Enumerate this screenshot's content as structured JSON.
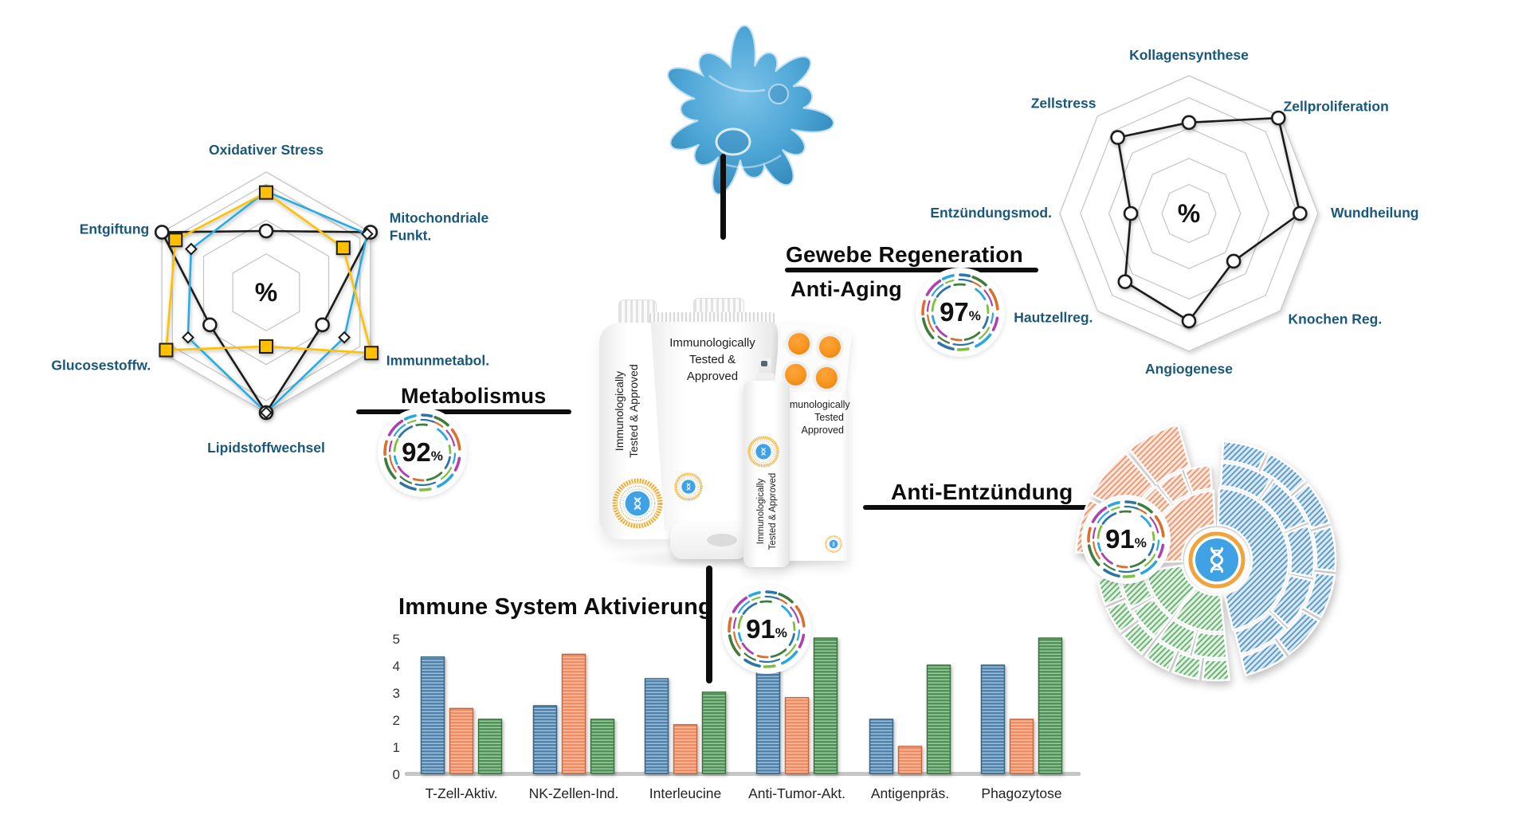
{
  "background_color": "#ffffff",
  "label_color": "#1a587b",
  "heading_color": "#0d0d0d",
  "badge_palette": [
    "#2e74a8",
    "#3e7d3e",
    "#d9702e",
    "#b03fb0",
    "#29a8e0",
    "#7fbf3f"
  ],
  "badges": {
    "metabolismus": {
      "value": "92",
      "unit": "%"
    },
    "gewebe_regeneration": {
      "value": "97",
      "unit": "%"
    },
    "anti_entzuendung": {
      "value": "91",
      "unit": "%"
    },
    "immune_aktivierung": {
      "value": "91",
      "unit": "%"
    }
  },
  "products": {
    "bottle_lines": [
      "Immunologically",
      "Tested & Approved"
    ],
    "tube_lines": [
      "Immunologically",
      "Tested &",
      "Approved"
    ],
    "spray_lines": [
      "Immunologically",
      "Tested & Approved"
    ],
    "box_lines": [
      "Immunologically",
      "Tested",
      "Approved"
    ]
  },
  "icons": {
    "seal": "dna-approval-seal-icon",
    "sunburst_center": "dna-helix-icon",
    "cell": "immune-cell-image"
  },
  "chart_data": [
    {
      "id": "metabolismus-radar",
      "type": "radar",
      "title": "Metabolismus",
      "center_label": "%",
      "scale_max": 100,
      "rings": [
        100,
        90,
        60,
        32
      ],
      "categories": [
        "Oxidativer Stress",
        "Mitochondriale\nFunkt.",
        "Immunmetabol.",
        "Lipidstoffwechsel",
        "Glucosestoffw.",
        "Entgiftung"
      ],
      "series": [
        {
          "name": "Serie schwarz",
          "color": "#1a1a1a",
          "marker": "circle",
          "values": [
            51,
            100,
            54,
            100,
            54,
            100
          ]
        },
        {
          "name": "Serie blau",
          "color": "#29abe2",
          "marker": "diamond",
          "values": [
            84,
            97,
            75,
            100,
            75,
            72
          ]
        },
        {
          "name": "Serie orange",
          "color": "#ffc000",
          "marker": "square",
          "values": [
            83,
            74,
            101,
            45,
            96,
            87
          ]
        }
      ]
    },
    {
      "id": "gewebe-radar",
      "type": "radar",
      "title": "Gewebe Regeneration",
      "subtitle": "Anti-Aging",
      "center_label": "%",
      "scale_max": 100,
      "rings": [
        100,
        84,
        62,
        40,
        21
      ],
      "categories": [
        "Kollagensynthese",
        "Zellproliferation",
        "Wundheilung",
        "Knochen Reg.",
        "Angiogenese",
        "Hautzellreg.",
        "Entzündungsmod.",
        "Zellstress"
      ],
      "series": [
        {
          "name": "Serie schwarz",
          "color": "#1a1a1a",
          "marker": "circle",
          "values": [
            66,
            98,
            86,
            49,
            78,
            70,
            45,
            78
          ]
        }
      ]
    },
    {
      "id": "immune-bars",
      "type": "bar",
      "title": "Immune System Aktivierung",
      "xlabel": "",
      "ylabel": "",
      "ylim": [
        0,
        5
      ],
      "yticks": [
        0,
        1,
        2,
        3,
        4,
        5
      ],
      "grid": false,
      "legend": false,
      "categories": [
        "T-Zell-Aktiv.",
        "NK-Zellen-Ind.",
        "Interleucine",
        "Anti-Tumor-Akt.",
        "Antigenpräs.",
        "Phagozytose"
      ],
      "series": [
        {
          "name": "Serie blau",
          "color": "#4d80aa",
          "values": [
            4.3,
            2.5,
            3.5,
            4.0,
            2.0,
            4.0
          ]
        },
        {
          "name": "Serie orange",
          "color": "#ee8a5f",
          "values": [
            2.4,
            4.4,
            1.8,
            2.8,
            1.0,
            2.0
          ]
        },
        {
          "name": "Serie grün",
          "color": "#4d9153",
          "values": [
            2.0,
            2.0,
            3.0,
            5.0,
            4.0,
            5.0
          ]
        }
      ]
    },
    {
      "id": "anti-entzuendung-sunburst",
      "type": "sunburst",
      "title": "Anti-Entzündung",
      "sections": [
        {
          "name": "blau",
          "color": "#5e9cc6",
          "start_deg": 2,
          "end_deg": 167
        },
        {
          "name": "grün",
          "color": "#6cb474",
          "start_deg": 173,
          "end_deg": 262
        },
        {
          "name": "orange",
          "color": "#eb9a76",
          "start_deg": 268,
          "end_deg": 357
        }
      ]
    }
  ]
}
